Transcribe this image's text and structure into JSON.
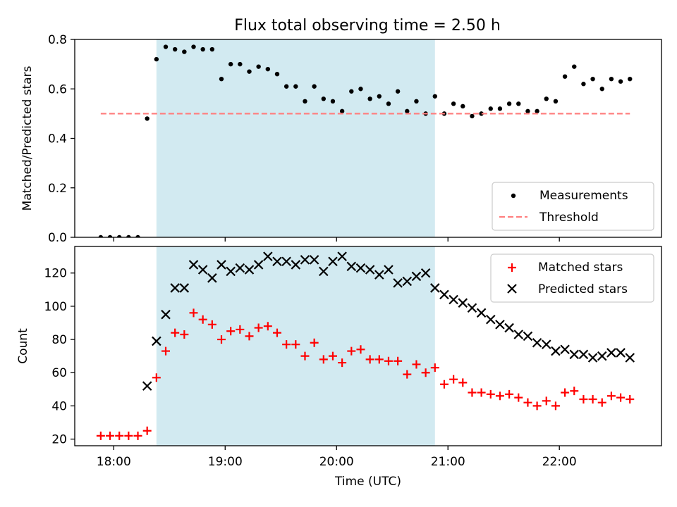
{
  "title": "Flux total observing time = 2.50 h",
  "colors": {
    "shade": "#add8e6",
    "threshold": "#ff7f7f",
    "matched": "#ff0000",
    "predicted": "#000000",
    "measurement": "#000000"
  },
  "chart_data": [
    {
      "type": "scatter",
      "panel": "top",
      "ylabel": "Matched/Predicted stars",
      "xlabel": "",
      "ylim": [
        0,
        0.8
      ],
      "yticks": [
        0.0,
        0.2,
        0.4,
        0.6,
        0.8
      ],
      "ytick_labels": [
        "0.0",
        "0.2",
        "0.4",
        "0.6",
        "0.8"
      ],
      "shaded_span": [
        "18:23",
        "20:53"
      ],
      "legend_position": "lower right",
      "series": [
        {
          "name": "Measurements",
          "marker": "dot",
          "x": [
            "17:53",
            "17:58",
            "18:03",
            "18:08",
            "18:13",
            "18:18",
            "18:23",
            "18:28",
            "18:33",
            "18:38",
            "18:43",
            "18:48",
            "18:53",
            "18:58",
            "19:03",
            "19:08",
            "19:13",
            "19:18",
            "19:23",
            "19:28",
            "19:33",
            "19:38",
            "19:43",
            "19:48",
            "19:53",
            "19:58",
            "20:03",
            "20:08",
            "20:13",
            "20:18",
            "20:23",
            "20:28",
            "20:33",
            "20:38",
            "20:43",
            "20:48",
            "20:53",
            "20:58",
            "21:03",
            "21:08",
            "21:13",
            "21:18",
            "21:23",
            "21:28",
            "21:33",
            "21:38",
            "21:43",
            "21:48",
            "21:53",
            "21:58",
            "22:03",
            "22:08",
            "22:13",
            "22:18",
            "22:23",
            "22:28",
            "22:33",
            "22:38"
          ],
          "y": [
            0.0,
            0.0,
            0.0,
            0.0,
            0.0,
            0.48,
            0.72,
            0.77,
            0.76,
            0.75,
            0.77,
            0.76,
            0.76,
            0.64,
            0.7,
            0.7,
            0.67,
            0.69,
            0.68,
            0.66,
            0.61,
            0.61,
            0.55,
            0.61,
            0.56,
            0.55,
            0.51,
            0.59,
            0.6,
            0.56,
            0.57,
            0.54,
            0.59,
            0.51,
            0.55,
            0.5,
            0.57,
            0.5,
            0.54,
            0.53,
            0.49,
            0.5,
            0.52,
            0.52,
            0.54,
            0.54,
            0.51,
            0.51,
            0.56,
            0.55,
            0.65,
            0.69,
            0.62,
            0.64,
            0.6,
            0.64,
            0.63,
            0.64
          ]
        },
        {
          "name": "Threshold",
          "marker": "dashed-line",
          "x": [
            "17:53",
            "22:38"
          ],
          "y": [
            0.5,
            0.5
          ]
        }
      ]
    },
    {
      "type": "scatter",
      "panel": "bottom",
      "ylabel": "Count",
      "xlabel": "Time (UTC)",
      "ylim": [
        16,
        136
      ],
      "yticks": [
        20,
        40,
        60,
        80,
        100,
        120
      ],
      "ytick_labels": [
        "20",
        "40",
        "60",
        "80",
        "100",
        "120"
      ],
      "xticks": [
        "18:00",
        "19:00",
        "20:00",
        "21:00",
        "22:00"
      ],
      "xlim": [
        "17:39",
        "22:55"
      ],
      "shaded_span": [
        "18:23",
        "20:53"
      ],
      "legend_position": "upper right",
      "series": [
        {
          "name": "Matched stars",
          "marker": "plus",
          "x": [
            "17:53",
            "17:58",
            "18:03",
            "18:08",
            "18:13",
            "18:18",
            "18:23",
            "18:28",
            "18:33",
            "18:38",
            "18:43",
            "18:48",
            "18:53",
            "18:58",
            "19:03",
            "19:08",
            "19:13",
            "19:18",
            "19:23",
            "19:28",
            "19:33",
            "19:38",
            "19:43",
            "19:48",
            "19:53",
            "19:58",
            "20:03",
            "20:08",
            "20:13",
            "20:18",
            "20:23",
            "20:28",
            "20:33",
            "20:38",
            "20:43",
            "20:48",
            "20:53",
            "20:58",
            "21:03",
            "21:08",
            "21:13",
            "21:18",
            "21:23",
            "21:28",
            "21:33",
            "21:38",
            "21:43",
            "21:48",
            "21:53",
            "21:58",
            "22:03",
            "22:08",
            "22:13",
            "22:18",
            "22:23",
            "22:28",
            "22:33",
            "22:38"
          ],
          "y": [
            22,
            22,
            22,
            22,
            22,
            25,
            57,
            73,
            84,
            83,
            96,
            92,
            89,
            80,
            85,
            86,
            82,
            87,
            88,
            84,
            77,
            77,
            70,
            78,
            68,
            70,
            66,
            73,
            74,
            68,
            68,
            67,
            67,
            59,
            65,
            60,
            63,
            53,
            56,
            54,
            48,
            48,
            47,
            46,
            47,
            45,
            42,
            40,
            43,
            40,
            48,
            49,
            44,
            44,
            42,
            46,
            45,
            44
          ]
        },
        {
          "name": "Predicted stars",
          "marker": "x",
          "x": [
            "18:18",
            "18:23",
            "18:28",
            "18:33",
            "18:38",
            "18:43",
            "18:48",
            "18:53",
            "18:58",
            "19:03",
            "19:08",
            "19:13",
            "19:18",
            "19:23",
            "19:28",
            "19:33",
            "19:38",
            "19:43",
            "19:48",
            "19:53",
            "19:58",
            "20:03",
            "20:08",
            "20:13",
            "20:18",
            "20:23",
            "20:28",
            "20:33",
            "20:38",
            "20:43",
            "20:48",
            "20:53",
            "20:58",
            "21:03",
            "21:08",
            "21:13",
            "21:18",
            "21:23",
            "21:28",
            "21:33",
            "21:38",
            "21:43",
            "21:48",
            "21:53",
            "21:58",
            "22:03",
            "22:08",
            "22:13",
            "22:18",
            "22:23",
            "22:28",
            "22:33",
            "22:38"
          ],
          "y": [
            52,
            79,
            95,
            111,
            111,
            125,
            122,
            117,
            125,
            121,
            123,
            122,
            125,
            130,
            127,
            127,
            125,
            128,
            128,
            121,
            127,
            130,
            124,
            123,
            122,
            119,
            122,
            114,
            115,
            118,
            120,
            111,
            107,
            104,
            102,
            99,
            96,
            92,
            89,
            87,
            83,
            82,
            78,
            77,
            73,
            74,
            71,
            71,
            69,
            70,
            72,
            72,
            69
          ]
        }
      ]
    }
  ]
}
